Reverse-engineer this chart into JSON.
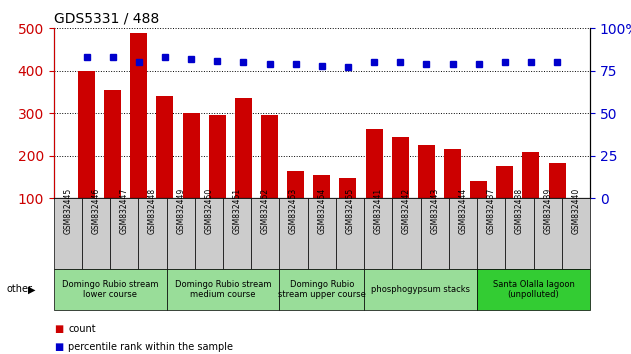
{
  "title": "GDS5331 / 488",
  "categories": [
    "GSM832445",
    "GSM832446",
    "GSM832447",
    "GSM832448",
    "GSM832449",
    "GSM832450",
    "GSM832451",
    "GSM832452",
    "GSM832453",
    "GSM832454",
    "GSM832455",
    "GSM832441",
    "GSM832442",
    "GSM832443",
    "GSM832444",
    "GSM832437",
    "GSM832438",
    "GSM832439",
    "GSM832440"
  ],
  "bar_values": [
    400,
    355,
    490,
    340,
    300,
    295,
    335,
    295,
    163,
    155,
    147,
    262,
    243,
    225,
    215,
    140,
    175,
    210,
    182
  ],
  "dot_values": [
    83,
    83,
    80,
    83,
    82,
    81,
    80,
    79,
    79,
    78,
    77,
    80,
    80,
    79,
    79,
    79,
    80,
    80,
    80
  ],
  "bar_color": "#cc0000",
  "dot_color": "#0000cc",
  "ylim_left": [
    100,
    500
  ],
  "ylim_right": [
    0,
    100
  ],
  "yticks_left": [
    100,
    200,
    300,
    400,
    500
  ],
  "yticks_right": [
    0,
    25,
    50,
    75,
    100
  ],
  "groups": [
    {
      "label": "Domingo Rubio stream\nlower course",
      "start": 0,
      "end": 3,
      "color": "#99dd99"
    },
    {
      "label": "Domingo Rubio stream\nmedium course",
      "start": 4,
      "end": 7,
      "color": "#99dd99"
    },
    {
      "label": "Domingo Rubio\nstream upper course",
      "start": 8,
      "end": 10,
      "color": "#99dd99"
    },
    {
      "label": "phosphogypsum stacks",
      "start": 11,
      "end": 14,
      "color": "#99dd99"
    },
    {
      "label": "Santa Olalla lagoon\n(unpolluted)",
      "start": 15,
      "end": 18,
      "color": "#33cc33"
    }
  ],
  "legend_count_color": "#cc0000",
  "legend_dot_color": "#0000cc",
  "tick_bg_color": "#cccccc",
  "plot_bg": "#ffffff"
}
